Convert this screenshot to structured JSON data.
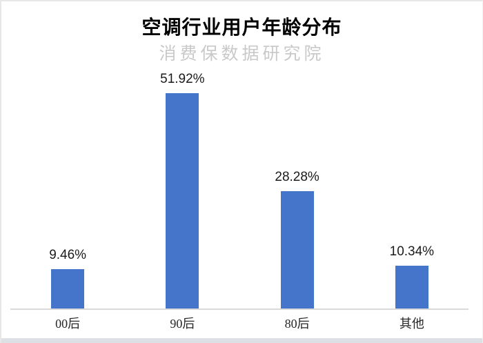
{
  "page": {
    "background": "#ffffff",
    "border_color": "#e7e7e7",
    "bottom_strip_color": "#dde0e5"
  },
  "chart_data": {
    "type": "bar",
    "title": "空调行业用户年龄分布",
    "subtitle_watermark": "消费保数据研究院",
    "categories": [
      "00后",
      "90后",
      "80后",
      "其他"
    ],
    "values": [
      9.46,
      51.92,
      28.28,
      10.34
    ],
    "value_labels": [
      "9.46%",
      "51.92%",
      "28.28%",
      "10.34%"
    ],
    "unit": "%",
    "xlabel": "",
    "ylabel": "",
    "ylim": [
      0,
      55
    ],
    "grid": false,
    "legend": false,
    "y_axis_visible": false,
    "colors": {
      "bar": "#4575cb",
      "axis_line": "#d9d9d9",
      "title": "#000000",
      "watermark": "#c9c9c9",
      "value_label": "#1a1a1a",
      "category_label": "#262626"
    }
  }
}
